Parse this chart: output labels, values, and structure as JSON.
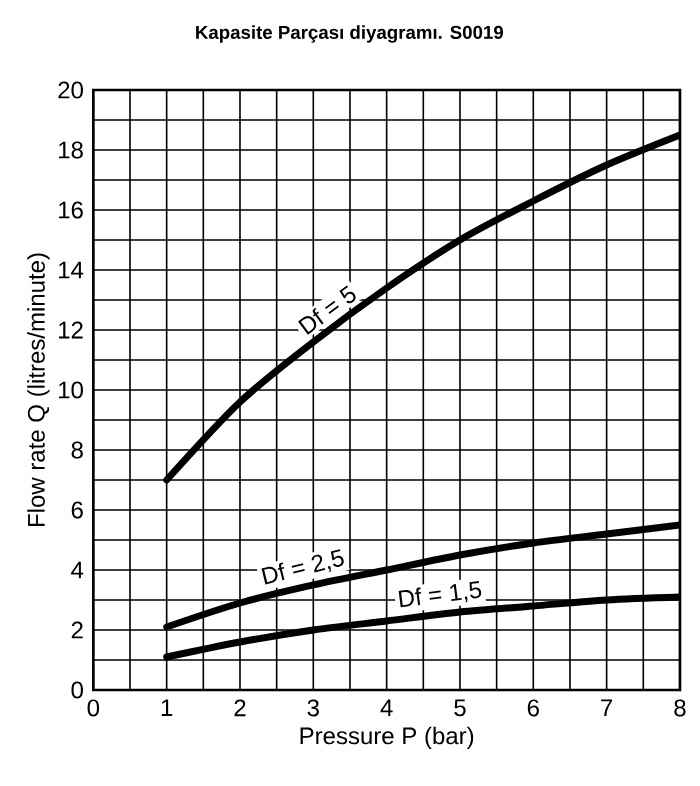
{
  "chart_data": {
    "type": "line",
    "title": "Kapasite Parçası diyagramı. S0019",
    "xlabel": "Pressure P (bar)",
    "ylabel": "Flow rate Q (litres/minute)",
    "x": [
      1,
      2,
      3,
      4,
      5,
      6,
      7,
      8
    ],
    "series": [
      {
        "name": "Df = 5",
        "color": "#000000",
        "values": [
          7,
          9.6,
          11.6,
          13.4,
          15,
          16.3,
          17.5,
          18.5
        ]
      },
      {
        "name": "Df = 2,5",
        "color": "#000000",
        "values": [
          2.1,
          2.9,
          3.5,
          4.0,
          4.5,
          4.9,
          5.2,
          5.5
        ]
      },
      {
        "name": "Df = 1,5",
        "color": "#000000",
        "values": [
          1.1,
          1.6,
          2.0,
          2.3,
          2.6,
          2.8,
          3.0,
          3.1
        ]
      }
    ],
    "xlim": [
      0,
      8
    ],
    "ylim": [
      0,
      20
    ],
    "xticks": [
      0,
      1,
      2,
      3,
      4,
      5,
      6,
      7,
      8
    ],
    "yticks": [
      0,
      2,
      4,
      6,
      8,
      10,
      12,
      14,
      16,
      18,
      20
    ],
    "grid": true,
    "legend": false,
    "marker": "none",
    "line_style": "solid"
  }
}
